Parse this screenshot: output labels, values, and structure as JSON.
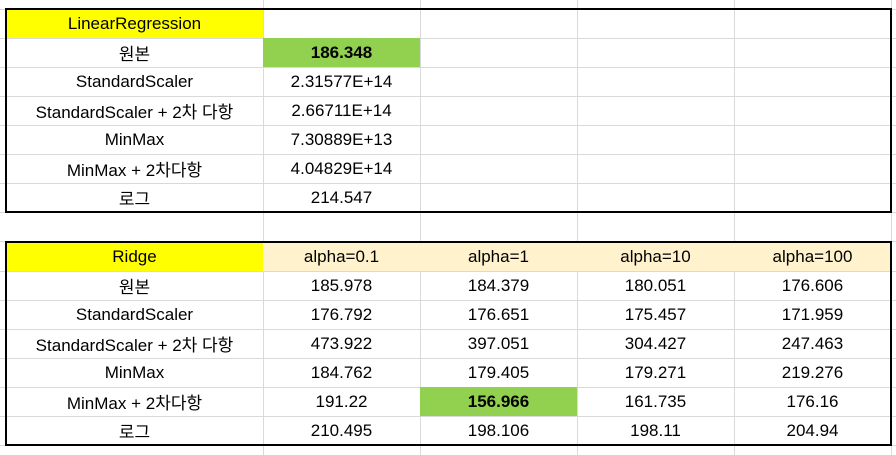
{
  "linear_table": {
    "header": "LinearRegression",
    "rows": [
      {
        "label": "원본",
        "value": "186.348"
      },
      {
        "label": "StandardScaler",
        "value": "2.31577E+14"
      },
      {
        "label": "StandardScaler + 2차 다항",
        "value": "2.66711E+14"
      },
      {
        "label": "MinMax",
        "value": "7.30889E+13"
      },
      {
        "label": "MinMax + 2차다항",
        "value": "4.04829E+14"
      },
      {
        "label": "로그",
        "value": "214.547"
      }
    ]
  },
  "ridge_table": {
    "header": "Ridge",
    "columns": [
      "alpha=0.1",
      "alpha=1",
      "alpha=10",
      "alpha=100"
    ],
    "rows": [
      {
        "label": "원본",
        "values": [
          "185.978",
          "184.379",
          "180.051",
          "176.606"
        ]
      },
      {
        "label": "StandardScaler",
        "values": [
          "176.792",
          "176.651",
          "175.457",
          "171.959"
        ]
      },
      {
        "label": "StandardScaler + 2차 다항",
        "values": [
          "473.922",
          "397.051",
          "304.427",
          "247.463"
        ]
      },
      {
        "label": "MinMax",
        "values": [
          "184.762",
          "179.405",
          "179.271",
          "219.276"
        ]
      },
      {
        "label": "MinMax + 2차다항",
        "values": [
          "191.22",
          "156.966",
          "161.735",
          "176.16"
        ]
      },
      {
        "label": "로그",
        "values": [
          "210.495",
          "198.106",
          "198.11",
          "204.94"
        ]
      }
    ]
  },
  "colors": {
    "header_highlight": "#ffff00",
    "alpha_header_fill": "#fff2cc",
    "best_value_fill": "#92d050",
    "gridline": "#d9d9d9"
  }
}
